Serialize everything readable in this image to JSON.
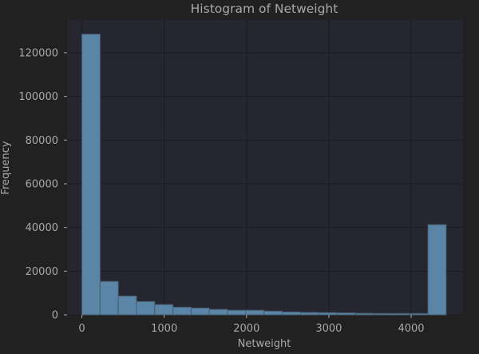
{
  "chart_data": {
    "type": "bar",
    "histogram": true,
    "title": "Histogram of Netweight",
    "xlabel": "Netweight",
    "ylabel": "Frequency",
    "xlim": [
      -180,
      4630
    ],
    "ylim": [
      0,
      135000
    ],
    "xticks": [
      0,
      1000,
      2000,
      3000,
      4000
    ],
    "xtick_labels": [
      "0",
      "1000",
      "2000",
      "3000",
      "4000"
    ],
    "yticks": [
      0,
      20000,
      40000,
      60000,
      80000,
      100000,
      120000
    ],
    "ytick_labels": [
      "0",
      "20000",
      "40000",
      "60000",
      "80000",
      "100000",
      "120000"
    ],
    "grid": true,
    "colors": {
      "figure_bg": "#212121",
      "axes_bg": "#262630",
      "bar_fill": "#5b85a6",
      "bar_edge": "#455d70",
      "grid": "#1b1b20",
      "text": "#a9a9ad"
    },
    "bins": [
      {
        "x0": 0,
        "x1": 221.25,
        "count": 128500
      },
      {
        "x0": 221.25,
        "x1": 442.5,
        "count": 15300
      },
      {
        "x0": 442.5,
        "x1": 663.75,
        "count": 8600
      },
      {
        "x0": 663.75,
        "x1": 885,
        "count": 6100
      },
      {
        "x0": 885,
        "x1": 1106.25,
        "count": 4700
      },
      {
        "x0": 1106.25,
        "x1": 1327.5,
        "count": 3500
      },
      {
        "x0": 1327.5,
        "x1": 1548.75,
        "count": 3100
      },
      {
        "x0": 1548.75,
        "x1": 1770,
        "count": 2500
      },
      {
        "x0": 1770,
        "x1": 1991.25,
        "count": 2100
      },
      {
        "x0": 1991.25,
        "x1": 2212.5,
        "count": 2100
      },
      {
        "x0": 2212.5,
        "x1": 2433.75,
        "count": 1700
      },
      {
        "x0": 2433.75,
        "x1": 2655,
        "count": 1300
      },
      {
        "x0": 2655,
        "x1": 2876.25,
        "count": 1100
      },
      {
        "x0": 2876.25,
        "x1": 3097.5,
        "count": 1000
      },
      {
        "x0": 3097.5,
        "x1": 3318.75,
        "count": 900
      },
      {
        "x0": 3318.75,
        "x1": 3540,
        "count": 700
      },
      {
        "x0": 3540,
        "x1": 3761.25,
        "count": 600
      },
      {
        "x0": 3761.25,
        "x1": 3982.5,
        "count": 600
      },
      {
        "x0": 3982.5,
        "x1": 4203.75,
        "count": 600
      },
      {
        "x0": 4203.75,
        "x1": 4425,
        "count": 41300
      }
    ]
  }
}
